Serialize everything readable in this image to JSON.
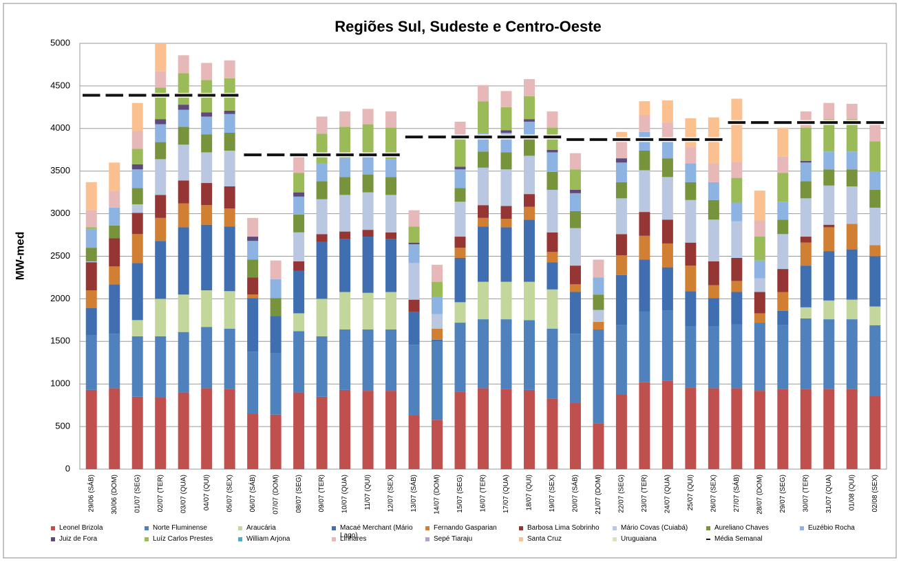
{
  "chart_data": {
    "type": "bar",
    "stacked": true,
    "title": "Regiões Sul, Sudeste e Centro-Oeste",
    "y_label": "MW-med",
    "categories": [
      "29/06 (SÁB)",
      "30/06 (DOM)",
      "01/07 (SEG)",
      "02/07 (TER)",
      "03/07 (QUA)",
      "04/07 (QUI)",
      "05/07 (SEX)",
      "06/07 (SÁB)",
      "07/07 (DOM)",
      "08/07 (SEG)",
      "09/07 (TER)",
      "10/07 (QUA)",
      "11/07 (QUI)",
      "12/07 (SEX)",
      "13/07 (SÁB)",
      "14/07 (DOM)",
      "15/07 (SEG)",
      "16/07 (TER)",
      "17/07 (QUA)",
      "18/07 (QUI)",
      "19/07 (SEX)",
      "20/07 (SÁB)",
      "21/07 (DOM)",
      "22/07 (SEG)",
      "23/07 (TER)",
      "24/07 (QUA)",
      "25/07 (QUI)",
      "26/07 (SEX)",
      "27/07 (SÁB)",
      "28/07 (DOM)",
      "29/07 (SEG)",
      "30/07 (TER)",
      "31/07 (QUA)",
      "01/08 (QUI)",
      "02/08 (SEX)"
    ],
    "series": [
      {
        "name": "Leonel Brizola",
        "color": "#c0504d",
        "values": [
          930,
          950,
          850,
          840,
          900,
          950,
          940,
          650,
          640,
          900,
          850,
          930,
          920,
          920,
          630,
          580,
          910,
          950,
          940,
          930,
          830,
          780,
          540,
          880,
          1020,
          1040,
          960,
          950,
          950,
          920,
          940,
          940,
          940,
          940,
          860
        ]
      },
      {
        "name": "Norte Fluminense",
        "color": "#4f81bd",
        "values": [
          640,
          640,
          710,
          720,
          710,
          720,
          710,
          730,
          720,
          720,
          710,
          710,
          720,
          720,
          830,
          920,
          810,
          810,
          820,
          820,
          820,
          810,
          1100,
          810,
          830,
          820,
          720,
          730,
          750,
          800,
          750,
          830,
          820,
          820,
          830
        ]
      },
      {
        "name": "Araucária",
        "color": "#c3d69b",
        "values": [
          0,
          0,
          190,
          440,
          440,
          430,
          440,
          0,
          0,
          210,
          440,
          440,
          430,
          440,
          0,
          0,
          240,
          440,
          440,
          450,
          460,
          0,
          0,
          0,
          0,
          0,
          0,
          0,
          0,
          0,
          0,
          130,
          220,
          230,
          220
        ]
      },
      {
        "name": "Macaé Merchant (Mário Lago)",
        "color": "#3f6fb0",
        "values": [
          320,
          580,
          670,
          680,
          790,
          770,
          760,
          630,
          440,
          500,
          670,
          620,
          660,
          620,
          390,
          20,
          520,
          650,
          640,
          730,
          320,
          490,
          0,
          590,
          610,
          510,
          410,
          330,
          380,
          0,
          170,
          490,
          580,
          590,
          590
        ]
      },
      {
        "name": "Fernando Gasparian",
        "color": "#d07f33",
        "values": [
          210,
          210,
          340,
          270,
          280,
          230,
          210,
          40,
          0,
          0,
          0,
          0,
          0,
          0,
          0,
          130,
          120,
          100,
          100,
          150,
          120,
          90,
          90,
          230,
          280,
          280,
          300,
          150,
          130,
          110,
          220,
          270,
          280,
          300,
          130
        ]
      },
      {
        "name": "Barbosa Lima Sobrinho",
        "color": "#963634",
        "values": [
          330,
          330,
          250,
          270,
          270,
          260,
          260,
          200,
          0,
          110,
          90,
          90,
          80,
          80,
          140,
          0,
          130,
          150,
          150,
          150,
          230,
          220,
          0,
          250,
          280,
          280,
          270,
          280,
          270,
          250,
          270,
          70,
          30,
          0,
          0
        ]
      },
      {
        "name": "Mário Covas (Cuiabá)",
        "color": "#b9c7e0",
        "values": [
          10,
          0,
          100,
          420,
          420,
          360,
          420,
          0,
          0,
          340,
          410,
          430,
          440,
          440,
          430,
          170,
          410,
          440,
          430,
          450,
          500,
          440,
          140,
          420,
          490,
          500,
          500,
          490,
          430,
          160,
          410,
          450,
          460,
          440,
          440
        ]
      },
      {
        "name": "Aureliano Chaves",
        "color": "#77933c",
        "values": [
          160,
          150,
          190,
          200,
          210,
          210,
          210,
          210,
          210,
          210,
          210,
          210,
          210,
          210,
          0,
          0,
          160,
          190,
          200,
          200,
          210,
          200,
          180,
          190,
          230,
          220,
          210,
          230,
          0,
          0,
          170,
          200,
          190,
          200,
          210
        ]
      },
      {
        "name": "Euzébio Rocha",
        "color": "#8db3e2",
        "values": [
          220,
          210,
          220,
          210,
          200,
          210,
          220,
          220,
          220,
          210,
          210,
          220,
          210,
          210,
          220,
          200,
          220,
          220,
          230,
          200,
          230,
          210,
          200,
          230,
          220,
          230,
          220,
          210,
          220,
          210,
          210,
          220,
          210,
          210,
          210
        ]
      },
      {
        "name": "Juiz de Fora",
        "color": "#5f497a",
        "values": [
          0,
          0,
          60,
          60,
          60,
          50,
          40,
          50,
          0,
          50,
          0,
          0,
          0,
          0,
          20,
          0,
          30,
          0,
          30,
          30,
          30,
          40,
          0,
          50,
          0,
          0,
          0,
          0,
          0,
          0,
          0,
          20,
          0,
          0,
          0
        ]
      },
      {
        "name": "Luíz Carlos Prestes",
        "color": "#9bbb59",
        "values": [
          20,
          0,
          180,
          370,
          370,
          380,
          380,
          0,
          0,
          230,
          350,
          370,
          380,
          370,
          190,
          180,
          330,
          370,
          270,
          270,
          260,
          240,
          0,
          0,
          0,
          0,
          0,
          0,
          290,
          280,
          340,
          390,
          380,
          380,
          360
        ]
      },
      {
        "name": "William Arjona",
        "color": "#4bacc6",
        "values": [
          0,
          0,
          0,
          0,
          0,
          0,
          0,
          0,
          0,
          0,
          0,
          0,
          0,
          0,
          0,
          0,
          0,
          0,
          0,
          0,
          0,
          0,
          0,
          0,
          0,
          0,
          0,
          0,
          0,
          0,
          0,
          0,
          0,
          0,
          0
        ]
      },
      {
        "name": "Linhares",
        "color": "#e6b9b8",
        "values": [
          200,
          200,
          210,
          190,
          210,
          200,
          210,
          220,
          220,
          200,
          200,
          180,
          180,
          190,
          190,
          200,
          200,
          190,
          190,
          200,
          190,
          190,
          210,
          250,
          200,
          190,
          190,
          220,
          190,
          190,
          190,
          190,
          190,
          180,
          210
        ]
      },
      {
        "name": "Sepé Tiaraju",
        "color": "#b3a2c7",
        "values": [
          0,
          0,
          0,
          0,
          0,
          0,
          0,
          0,
          0,
          0,
          0,
          0,
          0,
          0,
          0,
          0,
          0,
          0,
          0,
          0,
          0,
          0,
          0,
          0,
          0,
          0,
          0,
          0,
          0,
          0,
          0,
          0,
          0,
          0,
          0
        ]
      },
      {
        "name": "Santa Cruz",
        "color": "#fac090",
        "values": [
          330,
          330,
          330,
          330,
          0,
          0,
          0,
          0,
          0,
          0,
          0,
          0,
          0,
          0,
          0,
          0,
          0,
          0,
          0,
          0,
          0,
          0,
          0,
          60,
          160,
          260,
          340,
          540,
          740,
          350,
          340,
          0,
          0,
          0,
          0
        ]
      },
      {
        "name": "Uruguaiana",
        "color": "#d7e4bc",
        "values": [
          0,
          0,
          0,
          0,
          0,
          0,
          0,
          0,
          0,
          0,
          0,
          0,
          0,
          0,
          0,
          0,
          0,
          0,
          0,
          0,
          0,
          0,
          0,
          0,
          0,
          0,
          0,
          0,
          0,
          0,
          0,
          0,
          0,
          0,
          0
        ]
      },
      {
        "name": "Média Semanal",
        "color": "#111111",
        "type": "line",
        "dashed": true,
        "values": [
          4390,
          4390,
          4390,
          4390,
          4390,
          4390,
          4390,
          3690,
          3690,
          3690,
          3690,
          3690,
          3690,
          3690,
          3900,
          3900,
          3900,
          3900,
          3900,
          3900,
          3900,
          3870,
          3870,
          3870,
          3870,
          3870,
          3870,
          3870,
          4070,
          4070,
          4070,
          4070,
          4070,
          4070,
          4070
        ]
      }
    ],
    "ylim": [
      0,
      5000
    ],
    "yticks": [
      0,
      500,
      1000,
      1500,
      2000,
      2500,
      3000,
      3500,
      4000,
      4500,
      5000
    ],
    "grid": true,
    "legend": "bottom"
  }
}
